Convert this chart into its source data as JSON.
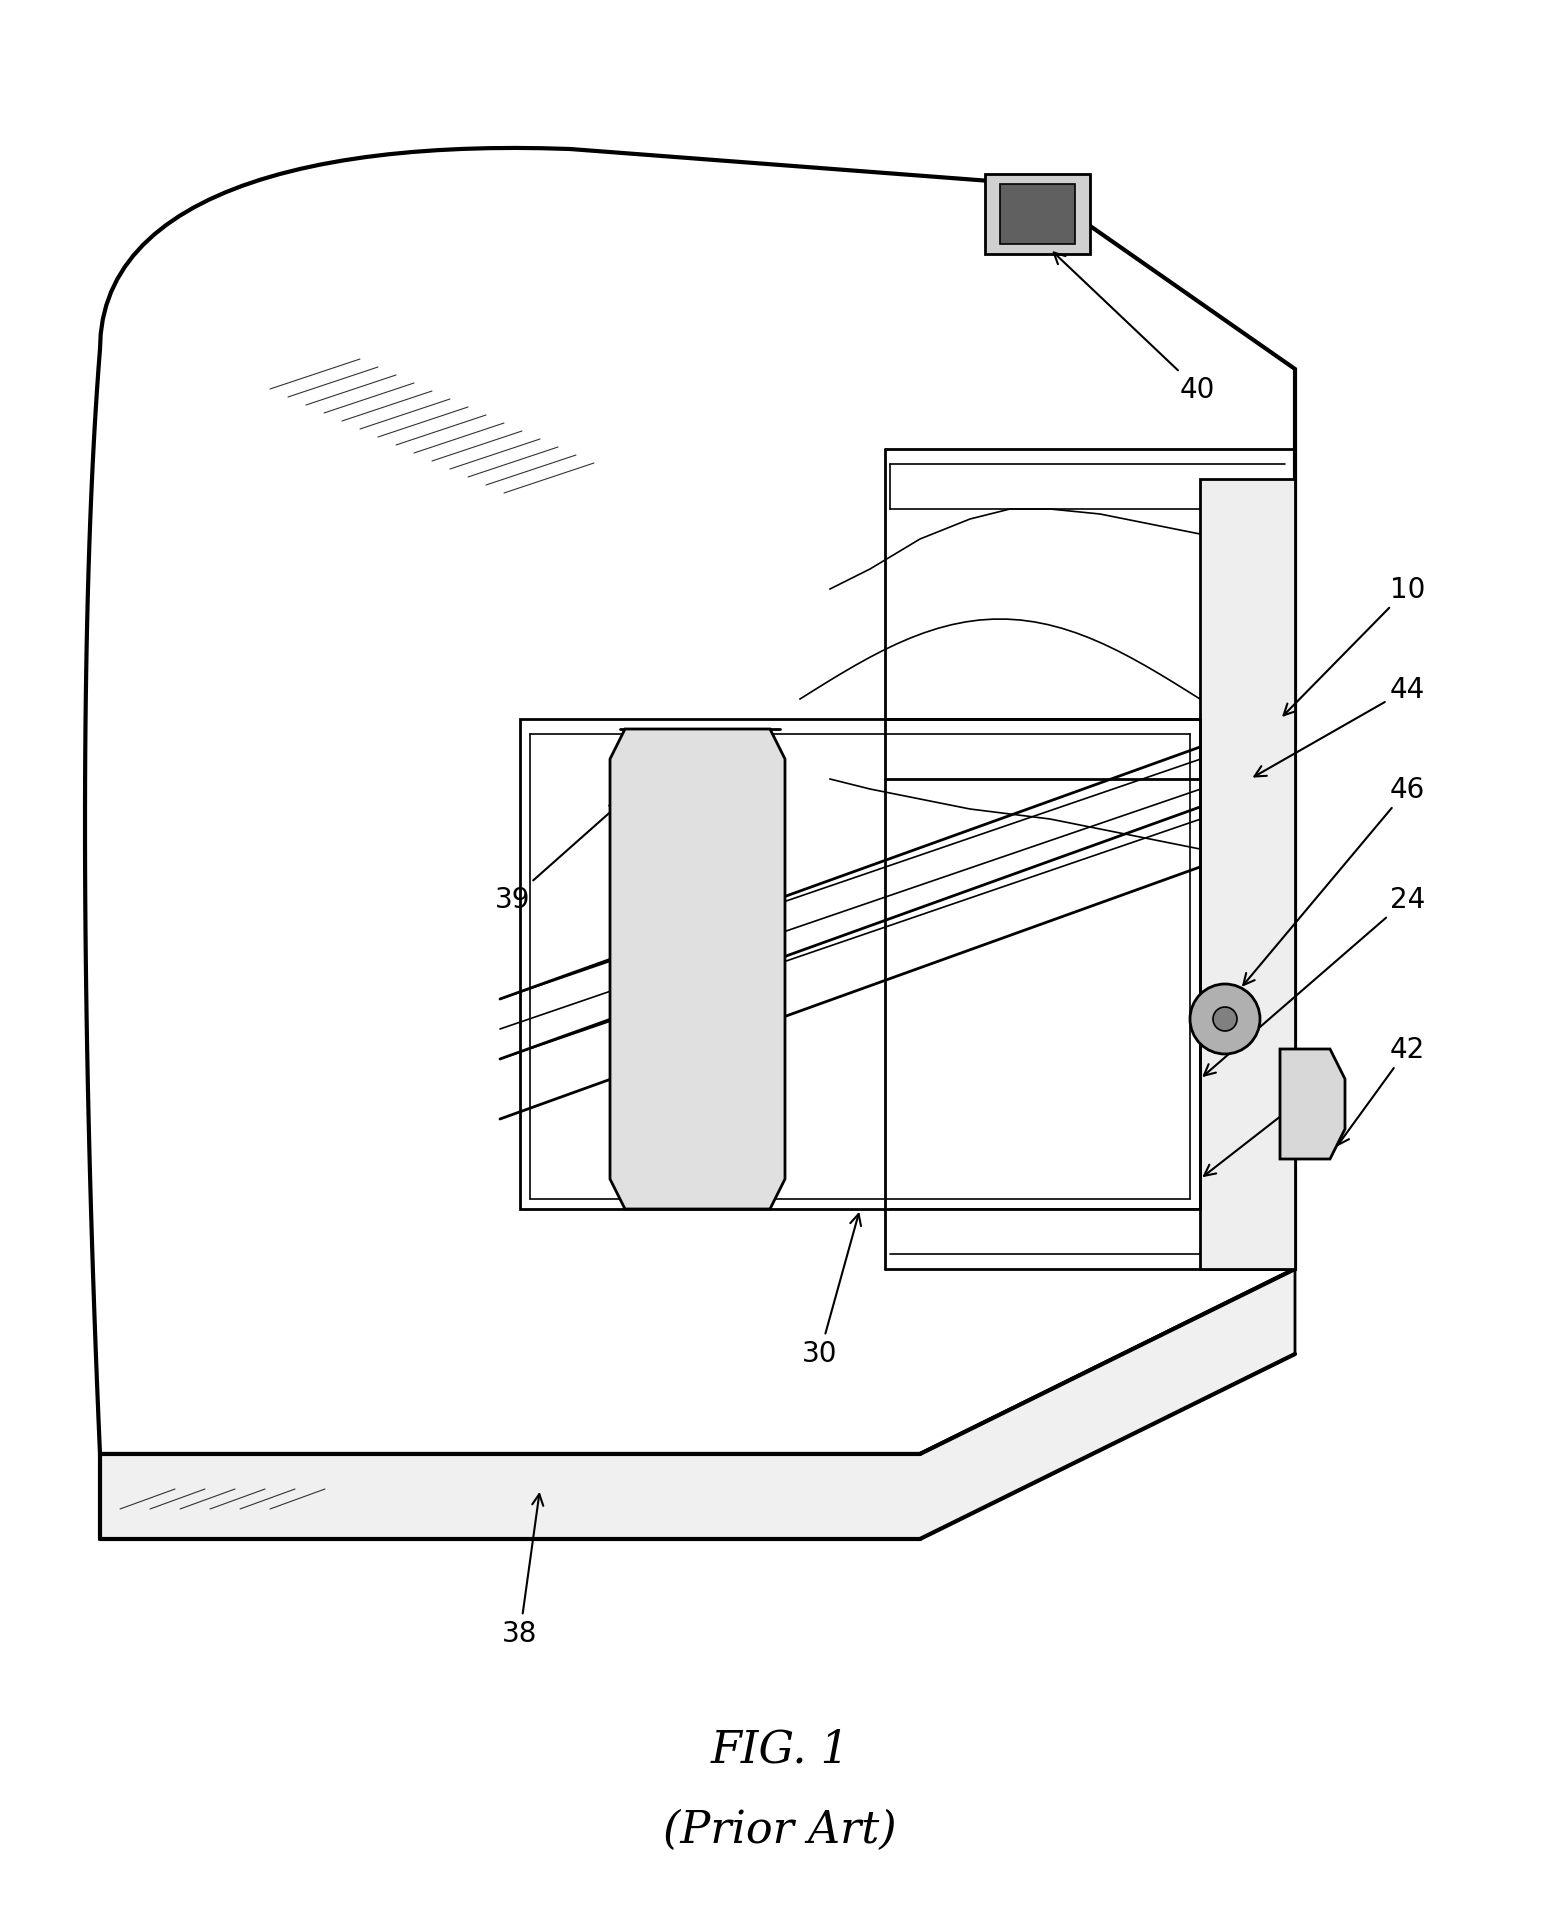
{
  "background_color": "#ffffff",
  "line_color": "#000000",
  "title_line1": "FIG. 1",
  "title_line2": "(Prior Art)",
  "title_fontsize": 32,
  "label_fontsize": 20,
  "fig_width": 15.59,
  "fig_height": 19.08,
  "dpi": 100
}
